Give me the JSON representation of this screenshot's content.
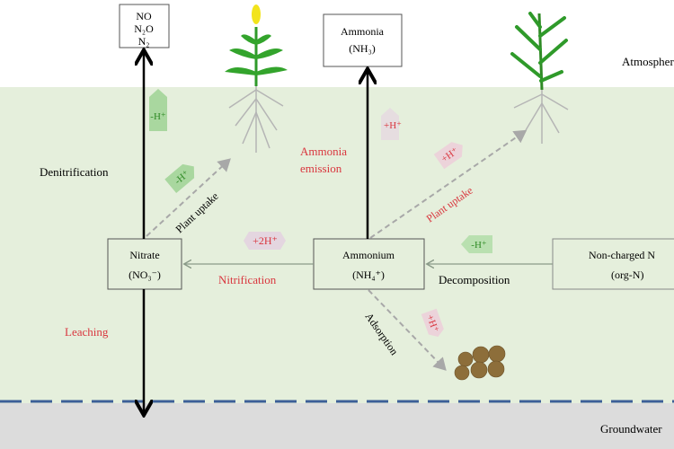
{
  "zones": {
    "atmosphere": "Atmosphere",
    "groundwater": "Groundwater"
  },
  "boxes": {
    "gases": [
      "NO",
      "N₂O",
      "N₂"
    ],
    "ammonia": [
      "Ammonia",
      "(NH₃)"
    ],
    "nitrate": [
      "Nitrate",
      "(NO₃⁻)"
    ],
    "ammonium": [
      "Ammonium",
      "(NH₄⁺)"
    ],
    "org_n": [
      "Non-charged N",
      "(org-N)"
    ]
  },
  "processes": {
    "denitrification": "Denitrification",
    "leaching": "Leaching",
    "nitrification": "Nitrification",
    "decomposition": "Decomposition",
    "ammonia_emission": [
      "Ammonia",
      "emission"
    ],
    "plant_uptake_left": "Plant uptake",
    "plant_uptake_right": "Plant uptake",
    "adsorption": "Adsorption"
  },
  "proton_tags": {
    "denitrification": "-H⁺",
    "plant_uptake_nitrate": "-H⁺",
    "ammonia_emission": "+H⁺",
    "plant_uptake_ammonium": "+H⁺",
    "nitrification": "+2H⁺",
    "decomposition": "-H⁺",
    "adsorption": "+H⁺"
  },
  "colors": {
    "soil": "#e5efdc",
    "groundwater": "#dcdcdc",
    "water_table": "#3d5f98",
    "red_label": "#d9363e",
    "green_tag": "#a9d79f",
    "pink_tag": "#ecd3da"
  }
}
